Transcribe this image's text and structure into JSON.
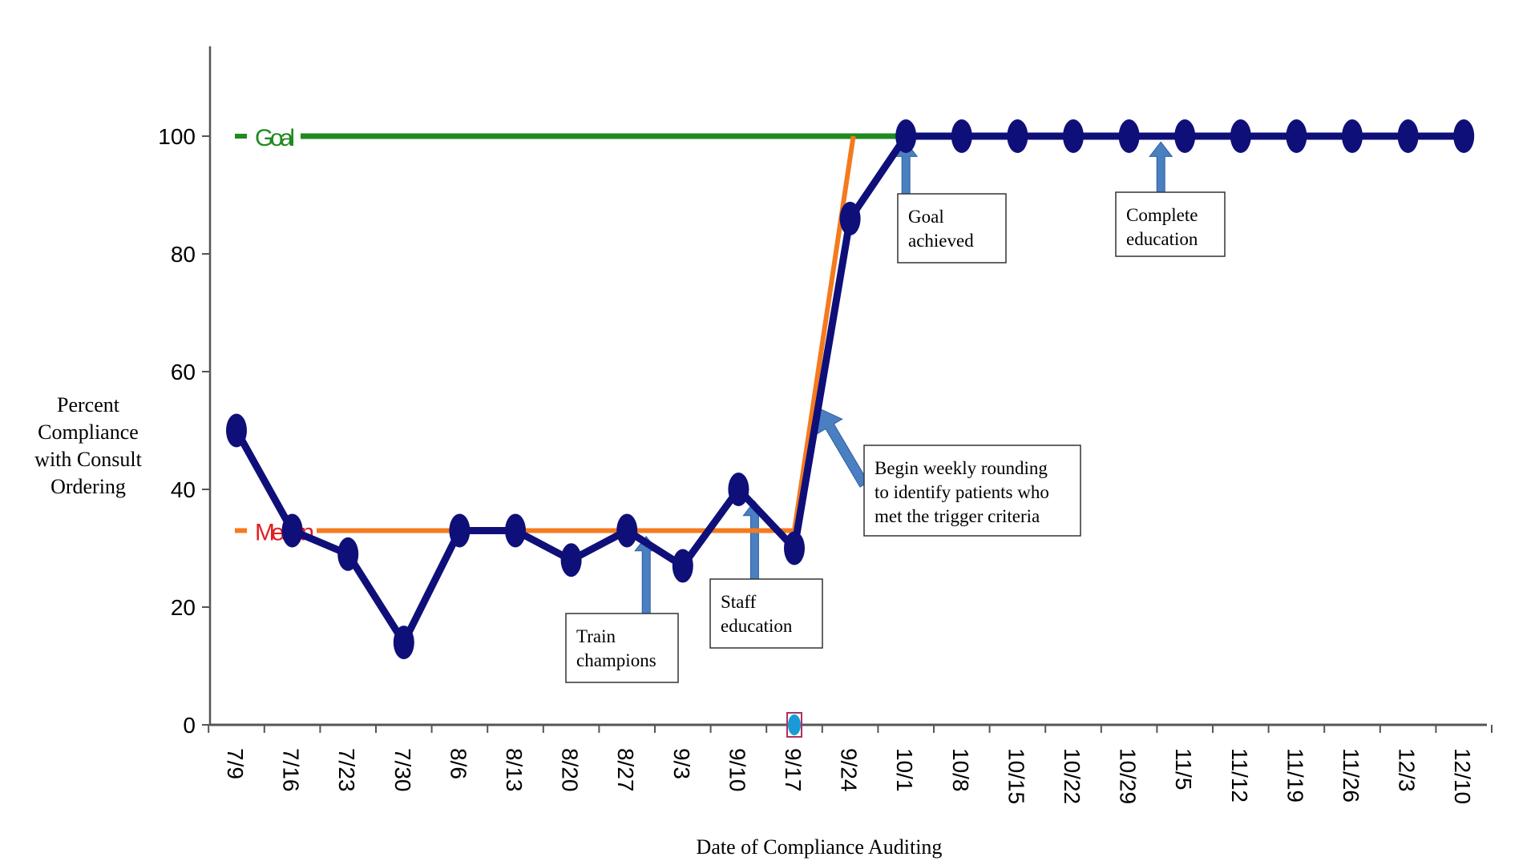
{
  "chart_data": {
    "type": "line",
    "title": "",
    "xlabel": "Date of Compliance Auditing",
    "ylabel_lines": [
      "Percent",
      "Compliance",
      "with Consult",
      "Ordering"
    ],
    "categories": [
      "7/9",
      "7/16",
      "7/23",
      "7/30",
      "8/6",
      "8/13",
      "8/20",
      "8/27",
      "9/3",
      "9/10",
      "9/17",
      "9/24",
      "10/1",
      "10/8",
      "10/15",
      "10/22",
      "10/29",
      "11/5",
      "11/12",
      "11/19",
      "11/26",
      "12/3",
      "12/10"
    ],
    "yticks": [
      0,
      20,
      40,
      60,
      80,
      100
    ],
    "ylim": [
      0,
      115
    ],
    "series": [
      {
        "values": [
          50,
          33,
          29,
          14,
          33,
          33,
          28,
          33,
          27,
          40,
          30,
          86,
          100,
          100,
          100,
          100,
          100,
          100,
          100,
          100,
          100,
          100,
          100
        ],
        "color": "#0f0f7a"
      }
    ],
    "reference_lines": {
      "goal": {
        "label": "Goal",
        "value": 100,
        "color": "#1f8a1f",
        "label_color": "#1f8a1f"
      },
      "median": {
        "label": "Median",
        "value": 33,
        "color": "#f47a1f",
        "label_color": "#e01f1f",
        "shift_after": "9/17",
        "shift_to": "9/24"
      }
    },
    "annotations": [
      {
        "lines": [
          "Train",
          "champions"
        ],
        "at": "8/27"
      },
      {
        "lines": [
          "Staff",
          "education"
        ],
        "at": "9/10"
      },
      {
        "lines": [
          "Begin weekly rounding",
          "to identify patients who",
          "met the trigger criteria"
        ],
        "at": "9/24"
      },
      {
        "lines": [
          "Goal",
          "achieved"
        ],
        "at": "10/1"
      },
      {
        "lines": [
          "Complete",
          "education"
        ],
        "at": "11/5"
      }
    ],
    "grid": false,
    "legend": "none",
    "colors": {
      "axis": "#555555",
      "arrow": "#4a7fc1",
      "marker": "#1a9bd7"
    }
  }
}
